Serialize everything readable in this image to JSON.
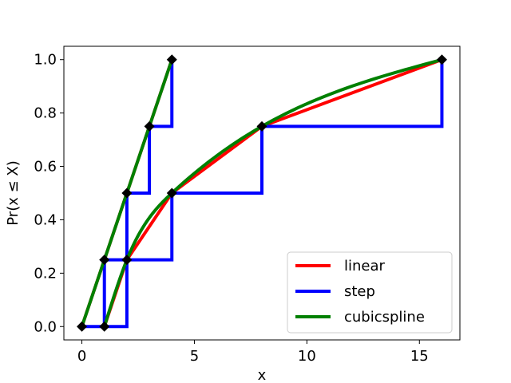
{
  "chart_data": {
    "type": "line",
    "xlabel": "x",
    "ylabel": "Pr(x ≤ X)",
    "xlim": [
      -0.8,
      16.8
    ],
    "ylim": [
      -0.05,
      1.05
    ],
    "xticks": [
      0,
      5,
      10,
      15
    ],
    "yticks": [
      0.0,
      0.2,
      0.4,
      0.6,
      0.8,
      1.0
    ],
    "xtick_labels": [
      "0",
      "5",
      "10",
      "15"
    ],
    "ytick_labels": [
      "0.0",
      "0.2",
      "0.4",
      "0.6",
      "0.8",
      "1.0"
    ],
    "grid": false,
    "legend_position": "bottom-right",
    "markers": [
      {
        "x": [
          0,
          1,
          2,
          3,
          4
        ],
        "y": [
          0.0,
          0.25,
          0.5,
          0.75,
          1.0
        ]
      },
      {
        "x": [
          1,
          2,
          4,
          8,
          16
        ],
        "y": [
          0.0,
          0.25,
          0.5,
          0.75,
          1.0
        ]
      }
    ],
    "series": [
      {
        "name": "linear",
        "color": "#ff0000",
        "groups": [
          {
            "x": [
              0,
              1,
              2,
              3,
              4
            ],
            "y": [
              0.0,
              0.25,
              0.5,
              0.75,
              1.0
            ],
            "style": "linear"
          },
          {
            "x": [
              1,
              2,
              4,
              8,
              16
            ],
            "y": [
              0.0,
              0.25,
              0.5,
              0.75,
              1.0
            ],
            "style": "linear"
          }
        ]
      },
      {
        "name": "step",
        "color": "#0000ff",
        "groups": [
          {
            "x": [
              0,
              1,
              2,
              3,
              4
            ],
            "y": [
              0.0,
              0.25,
              0.5,
              0.75,
              1.0
            ],
            "style": "step"
          },
          {
            "x": [
              1,
              2,
              4,
              8,
              16
            ],
            "y": [
              0.0,
              0.25,
              0.5,
              0.75,
              1.0
            ],
            "style": "step"
          }
        ]
      },
      {
        "name": "cubicspline",
        "color": "#008000",
        "groups": [
          {
            "x": [
              0,
              1,
              2,
              3,
              4
            ],
            "y": [
              0.0,
              0.25,
              0.5,
              0.75,
              1.0
            ],
            "style": "spline"
          },
          {
            "x": [
              1,
              2,
              4,
              8,
              16
            ],
            "y": [
              0.0,
              0.25,
              0.5,
              0.75,
              1.0
            ],
            "style": "spline"
          }
        ]
      }
    ]
  }
}
